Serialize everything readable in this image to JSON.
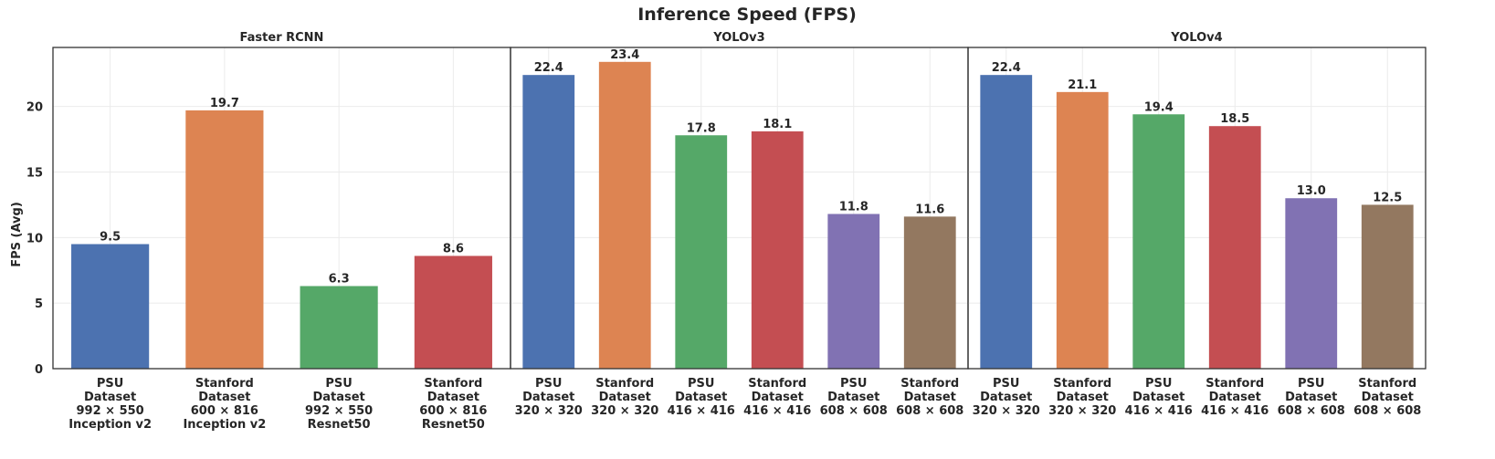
{
  "chart_data": {
    "type": "bar",
    "title": "Inference Speed (FPS)",
    "ylabel": "FPS (Avg)",
    "ylim": [
      0,
      24.5
    ],
    "yticks": [
      0,
      5,
      10,
      15,
      20
    ],
    "grid": true,
    "shared_y": true,
    "colors": [
      "#4c72b0",
      "#dd8452",
      "#55a868",
      "#c44e52",
      "#8172b3",
      "#937860"
    ],
    "panels": [
      {
        "title": "Faster RCNN",
        "categories": [
          [
            "PSU",
            "Dataset",
            "992 × 550",
            "Inception v2"
          ],
          [
            "Stanford",
            "Dataset",
            "600 × 816",
            "Inception v2"
          ],
          [
            "PSU",
            "Dataset",
            "992 × 550",
            "Resnet50"
          ],
          [
            "Stanford",
            "Dataset",
            "600 × 816",
            "Resnet50"
          ]
        ],
        "values": [
          9.5,
          19.7,
          6.3,
          8.6
        ],
        "value_labels": [
          "9.5",
          "19.7",
          "6.3",
          "8.6"
        ]
      },
      {
        "title": "YOLOv3",
        "categories": [
          [
            "PSU",
            "Dataset",
            "320 × 320"
          ],
          [
            "Stanford",
            "Dataset",
            "320 × 320"
          ],
          [
            "PSU",
            "Dataset",
            "416 × 416"
          ],
          [
            "Stanford",
            "Dataset",
            "416 × 416"
          ],
          [
            "PSU",
            "Dataset",
            "608 × 608"
          ],
          [
            "Stanford",
            "Dataset",
            "608 × 608"
          ]
        ],
        "values": [
          22.4,
          23.4,
          17.8,
          18.1,
          11.8,
          11.6
        ],
        "value_labels": [
          "22.4",
          "23.4",
          "17.8",
          "18.1",
          "11.8",
          "11.6"
        ]
      },
      {
        "title": "YOLOv4",
        "categories": [
          [
            "PSU",
            "Dataset",
            "320 × 320"
          ],
          [
            "Stanford",
            "Dataset",
            "320 × 320"
          ],
          [
            "PSU",
            "Dataset",
            "416 × 416"
          ],
          [
            "Stanford",
            "Dataset",
            "416 × 416"
          ],
          [
            "PSU",
            "Dataset",
            "608 × 608"
          ],
          [
            "Stanford",
            "Dataset",
            "608 × 608"
          ]
        ],
        "values": [
          22.4,
          21.1,
          19.4,
          18.5,
          13.0,
          12.5
        ],
        "value_labels": [
          "22.4",
          "21.1",
          "19.4",
          "18.5",
          "13.0",
          "12.5"
        ]
      }
    ]
  }
}
